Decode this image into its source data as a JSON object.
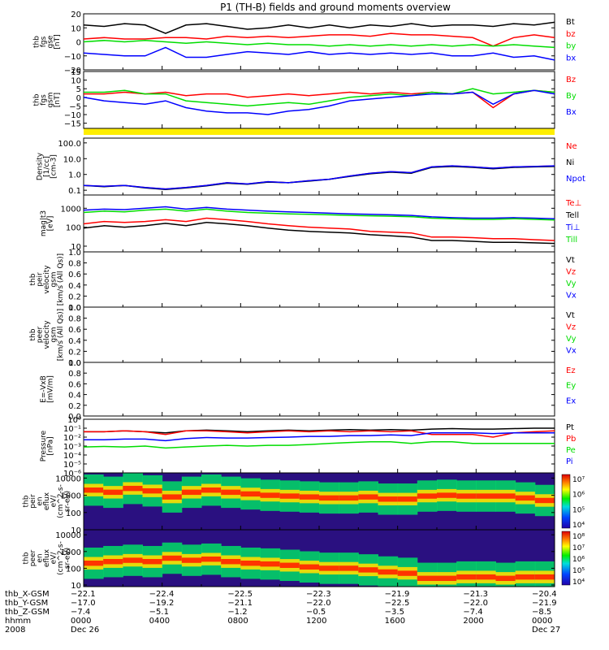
{
  "title": "P1 (TH-B) fields and ground moments overview",
  "colors": {
    "black": "#000000",
    "red": "#ff0000",
    "green": "#00dd00",
    "blue": "#0000ff",
    "yellow": "#ffee00"
  },
  "chart_data": [
    {
      "id": "fgs_gse",
      "type": "line",
      "ylabel": [
        "thb",
        "fgs",
        "gse",
        "[nT]"
      ],
      "ylim": [
        -20,
        20
      ],
      "yticks": [
        {
          "v": 20,
          "label": "20"
        },
        {
          "v": 10,
          "label": "10"
        },
        {
          "v": 0,
          "label": "0"
        },
        {
          "v": -10,
          "label": "−10"
        },
        {
          "v": -20,
          "label": "−20"
        }
      ],
      "series": [
        {
          "name": "Bt",
          "color": "black",
          "values": [
            12,
            11,
            13,
            12,
            6,
            12,
            13,
            11,
            9,
            10,
            12,
            10,
            12,
            10,
            12,
            11,
            13,
            11,
            12,
            12,
            11,
            13,
            12,
            14
          ]
        },
        {
          "name": "bz",
          "color": "red",
          "values": [
            2,
            3,
            2,
            2,
            3,
            3,
            2,
            4,
            3,
            4,
            3,
            4,
            5,
            5,
            4,
            6,
            5,
            5,
            4,
            3,
            -3,
            3,
            5,
            3
          ]
        },
        {
          "name": "by",
          "color": "green",
          "values": [
            0,
            1,
            0,
            1,
            0,
            -1,
            0,
            -1,
            -2,
            -1,
            -2,
            -2,
            -3,
            -2,
            -3,
            -2,
            -3,
            -2,
            -3,
            -2,
            -3,
            -2,
            -3,
            -4
          ]
        },
        {
          "name": "bx",
          "color": "blue",
          "values": [
            -8,
            -9,
            -10,
            -10,
            -4,
            -11,
            -11,
            -9,
            -7,
            -8,
            -9,
            -7,
            -9,
            -8,
            -9,
            -8,
            -9,
            -8,
            -10,
            -10,
            -8,
            -11,
            -10,
            -13
          ]
        }
      ]
    },
    {
      "id": "fgs_gsm",
      "type": "line",
      "ylabel": [
        "thb",
        "fgs",
        "gsm",
        "[nT]"
      ],
      "ylim": [
        -18,
        15
      ],
      "yticks": [
        {
          "v": 15,
          "label": "15"
        },
        {
          "v": 10,
          "label": "10"
        },
        {
          "v": 5,
          "label": "5"
        },
        {
          "v": 0,
          "label": "0"
        },
        {
          "v": -5,
          "label": "−5"
        },
        {
          "v": -10,
          "label": "−10"
        },
        {
          "v": -15,
          "label": "−15"
        }
      ],
      "series": [
        {
          "name": "Bz",
          "color": "red",
          "values": [
            2,
            2,
            3,
            2,
            3,
            1,
            2,
            2,
            0,
            1,
            2,
            1,
            2,
            3,
            2,
            3,
            2,
            3,
            2,
            3,
            -6,
            2,
            4,
            3
          ]
        },
        {
          "name": "By",
          "color": "green",
          "values": [
            3,
            3,
            4,
            2,
            2,
            -2,
            -3,
            -4,
            -5,
            -4,
            -3,
            -4,
            -2,
            0,
            1,
            2,
            1,
            3,
            2,
            5,
            2,
            3,
            4,
            3
          ]
        },
        {
          "name": "Bx",
          "color": "blue",
          "values": [
            0,
            -2,
            -3,
            -4,
            -2,
            -6,
            -8,
            -9,
            -9,
            -10,
            -8,
            -7,
            -5,
            -2,
            -1,
            0,
            1,
            2,
            2,
            3,
            -4,
            2,
            4,
            2
          ]
        }
      ]
    },
    {
      "id": "density",
      "type": "line",
      "ylabel": [
        "Density",
        "[1/cc]",
        "[cm-3]"
      ],
      "scale": "log",
      "ylim": [
        0.05,
        200
      ],
      "yticks": [
        {
          "v": 100,
          "label": "100.0"
        },
        {
          "v": 10,
          "label": "10.0"
        },
        {
          "v": 1,
          "label": "1.0"
        },
        {
          "v": 0.1,
          "label": "0.1"
        }
      ],
      "series": [
        {
          "name": "Ne",
          "color": "red",
          "values": [
            0.2,
            0.18,
            0.2,
            0.15,
            0.12,
            0.15,
            0.2,
            0.3,
            0.25,
            0.35,
            0.3,
            0.4,
            0.5,
            0.8,
            1.2,
            1.5,
            1.3,
            3,
            3.5,
            3,
            2.5,
            3,
            3.2,
            3.5
          ]
        },
        {
          "name": "Ni",
          "color": "black",
          "values": [
            0.2,
            0.17,
            0.2,
            0.14,
            0.11,
            0.14,
            0.19,
            0.28,
            0.24,
            0.33,
            0.3,
            0.38,
            0.5,
            0.75,
            1.1,
            1.4,
            1.2,
            2.8,
            3.2,
            2.8,
            2.3,
            2.8,
            3,
            3.2
          ]
        },
        {
          "name": "Npot",
          "color": "blue",
          "values": [
            0.2,
            0.18,
            0.2,
            0.15,
            0.12,
            0.15,
            0.2,
            0.3,
            0.25,
            0.35,
            0.3,
            0.4,
            0.5,
            0.8,
            1.2,
            1.5,
            1.3,
            3,
            3.5,
            3,
            2.5,
            3,
            3.2,
            3.5
          ]
        }
      ]
    },
    {
      "id": "temperature",
      "type": "line",
      "ylabel": [
        "mag|t3",
        "[eV]"
      ],
      "scale": "log",
      "ylim": [
        5,
        5000
      ],
      "yticks": [
        {
          "v": 1000,
          "label": "1000"
        },
        {
          "v": 100,
          "label": "100"
        },
        {
          "v": 10,
          "label": "10"
        }
      ],
      "series": [
        {
          "name": "Te⊥",
          "color": "red",
          "values": [
            150,
            200,
            180,
            200,
            250,
            200,
            300,
            250,
            200,
            150,
            120,
            100,
            90,
            80,
            60,
            55,
            50,
            30,
            30,
            28,
            25,
            25,
            22,
            20
          ]
        },
        {
          "name": "Tell",
          "color": "black",
          "values": [
            90,
            120,
            100,
            120,
            160,
            120,
            180,
            150,
            120,
            90,
            70,
            60,
            55,
            50,
            40,
            35,
            30,
            20,
            20,
            18,
            16,
            16,
            15,
            14
          ]
        },
        {
          "name": "Ti⊥",
          "color": "blue",
          "values": [
            800,
            900,
            850,
            1000,
            1200,
            900,
            1100,
            900,
            800,
            700,
            650,
            600,
            550,
            500,
            480,
            450,
            420,
            350,
            320,
            300,
            300,
            320,
            300,
            280
          ]
        },
        {
          "name": "Till",
          "color": "green",
          "values": [
            600,
            700,
            650,
            800,
            900,
            700,
            900,
            700,
            600,
            550,
            500,
            480,
            450,
            420,
            400,
            380,
            360,
            300,
            280,
            260,
            260,
            280,
            260,
            240
          ]
        }
      ]
    },
    {
      "id": "peir_velocity",
      "type": "line",
      "ylabel": [
        "thb",
        "peir",
        "velocity",
        "gsm",
        "[km/s (All Qs)]"
      ],
      "ylim": [
        0,
        1
      ],
      "yticks": [
        {
          "v": 1,
          "label": "1.0"
        },
        {
          "v": 0.8,
          "label": "0.8"
        },
        {
          "v": 0.6,
          "label": "0.6"
        },
        {
          "v": 0.4,
          "label": "0.4"
        },
        {
          "v": 0.2,
          "label": "0.2"
        },
        {
          "v": 0,
          "label": "0.0"
        }
      ],
      "series": [
        {
          "name": "Vt",
          "color": "black",
          "values": []
        },
        {
          "name": "Vz",
          "color": "red",
          "values": []
        },
        {
          "name": "Vy",
          "color": "green",
          "values": []
        },
        {
          "name": "Vx",
          "color": "blue",
          "values": []
        }
      ]
    },
    {
      "id": "peer_velocity",
      "type": "line",
      "ylabel": [
        "thb",
        "peer",
        "velocity",
        "gsm",
        "[km/s (All Qs)]"
      ],
      "ylim": [
        0,
        1
      ],
      "yticks": [
        {
          "v": 1,
          "label": "1.0"
        },
        {
          "v": 0.8,
          "label": "0.8"
        },
        {
          "v": 0.6,
          "label": "0.6"
        },
        {
          "v": 0.4,
          "label": "0.4"
        },
        {
          "v": 0.2,
          "label": "0.2"
        },
        {
          "v": 0,
          "label": "0.0"
        }
      ],
      "series": [
        {
          "name": "Vt",
          "color": "black",
          "values": []
        },
        {
          "name": "Vz",
          "color": "red",
          "values": []
        },
        {
          "name": "Vy",
          "color": "green",
          "values": []
        },
        {
          "name": "Vx",
          "color": "blue",
          "values": []
        }
      ]
    },
    {
      "id": "efield",
      "type": "line",
      "ylabel": [
        "E=-VxB",
        "[mV/m]"
      ],
      "ylim": [
        0,
        1
      ],
      "yticks": [
        {
          "v": 1,
          "label": "1.0"
        },
        {
          "v": 0.8,
          "label": "0.8"
        },
        {
          "v": 0.6,
          "label": "0.6"
        },
        {
          "v": 0.4,
          "label": "0.4"
        },
        {
          "v": 0.2,
          "label": "0.2"
        },
        {
          "v": 0,
          "label": "0.0"
        }
      ],
      "series": [
        {
          "name": "Ez",
          "color": "red",
          "values": []
        },
        {
          "name": "Ey",
          "color": "green",
          "values": []
        },
        {
          "name": "Ex",
          "color": "blue",
          "values": []
        }
      ]
    },
    {
      "id": "pressure",
      "type": "line",
      "ylabel": [
        "Pressure",
        "[nPa]"
      ],
      "scale": "log",
      "ylim": [
        1e-06,
        1
      ],
      "yticks": [
        {
          "v": 1,
          "label": "10⁰"
        },
        {
          "v": 0.1,
          "label": "10⁻¹"
        },
        {
          "v": 0.01,
          "label": "10⁻²"
        },
        {
          "v": 0.001,
          "label": "10⁻³"
        },
        {
          "v": 0.0001,
          "label": "10⁻⁴"
        },
        {
          "v": 1e-05,
          "label": "10⁻⁵"
        },
        {
          "v": 1e-06,
          "label": "10⁻⁶"
        }
      ],
      "series": [
        {
          "name": "Pt",
          "color": "black",
          "values": [
            0.04,
            0.04,
            0.05,
            0.04,
            0.03,
            0.05,
            0.06,
            0.05,
            0.04,
            0.05,
            0.06,
            0.05,
            0.06,
            0.07,
            0.06,
            0.07,
            0.06,
            0.08,
            0.09,
            0.08,
            0.08,
            0.09,
            0.1,
            0.1
          ]
        },
        {
          "name": "Pb",
          "color": "red",
          "values": [
            0.04,
            0.04,
            0.05,
            0.04,
            0.02,
            0.05,
            0.05,
            0.04,
            0.03,
            0.04,
            0.05,
            0.04,
            0.05,
            0.04,
            0.05,
            0.04,
            0.05,
            0.02,
            0.02,
            0.02,
            0.01,
            0.03,
            0.04,
            0.05
          ]
        },
        {
          "name": "Pe",
          "color": "green",
          "values": [
            0.0008,
            0.0009,
            0.0008,
            0.001,
            0.0006,
            0.0008,
            0.001,
            0.0012,
            0.001,
            0.0012,
            0.0012,
            0.0015,
            0.002,
            0.0025,
            0.003,
            0.003,
            0.002,
            0.003,
            0.003,
            0.002,
            0.002,
            0.002,
            0.002,
            0.002
          ]
        },
        {
          "name": "Pi",
          "color": "blue",
          "values": [
            0.005,
            0.005,
            0.006,
            0.006,
            0.004,
            0.007,
            0.009,
            0.008,
            0.008,
            0.009,
            0.01,
            0.012,
            0.012,
            0.015,
            0.015,
            0.018,
            0.015,
            0.03,
            0.03,
            0.03,
            0.025,
            0.03,
            0.03,
            0.03
          ]
        }
      ]
    },
    {
      "id": "peir_eflux",
      "type": "heatmap",
      "ylabel": [
        "thb",
        "peir",
        "en",
        "eflux",
        "eV/",
        "(cm^2-s-",
        "sr-eV)"
      ],
      "scale": "log",
      "ylim": [
        10,
        20000
      ],
      "yticks": [
        {
          "v": 10000,
          "label": "10000"
        },
        {
          "v": 1000,
          "label": "1000"
        },
        {
          "v": 100,
          "label": "100"
        },
        {
          "v": 10,
          "label": "10"
        }
      ],
      "colorbar": {
        "labels": [
          "10⁷",
          "10⁶",
          "10⁵",
          "10⁴"
        ]
      },
      "peak_energy": [
        2000,
        1500,
        2500,
        1800,
        800,
        1500,
        2000,
        1500,
        1200,
        1000,
        900,
        800,
        700,
        700,
        800,
        600,
        600,
        900,
        1000,
        900,
        900,
        900,
        700,
        500
      ]
    },
    {
      "id": "peer_eflux",
      "type": "heatmap",
      "ylabel": [
        "thb",
        "peer",
        "en",
        "eflux",
        "eV/",
        "(cm^2-s-",
        "sr-eV)"
      ],
      "scale": "log",
      "ylim": [
        8,
        20000
      ],
      "yticks": [
        {
          "v": 10000,
          "label": "10000"
        },
        {
          "v": 1000,
          "label": "1000"
        },
        {
          "v": 100,
          "label": "100"
        },
        {
          "v": 10,
          "label": "10"
        }
      ],
      "colorbar": {
        "labels": [
          "10⁸",
          "10⁷",
          "10⁶",
          "10⁵",
          "10⁴"
        ]
      },
      "peak_energy": [
        200,
        250,
        300,
        250,
        400,
        300,
        350,
        250,
        200,
        180,
        150,
        120,
        100,
        100,
        80,
        60,
        50,
        25,
        25,
        30,
        30,
        25,
        30,
        30
      ]
    }
  ],
  "xaxis": {
    "row_labels": [
      "thb_X-GSM",
      "thb_Y-GSM",
      "thb_Z-GSM",
      "hhmm",
      "2008"
    ],
    "ticks": [
      {
        "t": 0,
        "values": [
          "−22.1",
          "−17.0",
          "−7.4",
          "0000",
          "Dec 26"
        ]
      },
      {
        "t": 4,
        "values": [
          "−22.4",
          "−19.2",
          "−5.1",
          "0400",
          ""
        ]
      },
      {
        "t": 8,
        "values": [
          "−22.5",
          "−21.1",
          "−1.2",
          "0800",
          ""
        ]
      },
      {
        "t": 12,
        "values": [
          "−22.3",
          "−22.0",
          "−0.5",
          "1200",
          ""
        ]
      },
      {
        "t": 16,
        "values": [
          "−21.9",
          "−22.5",
          "−3.5",
          "1600",
          ""
        ]
      },
      {
        "t": 20,
        "values": [
          "−21.3",
          "−22.0",
          "−7.4",
          "2000",
          ""
        ]
      },
      {
        "t": 24,
        "values": [
          "−20.4",
          "−21.9",
          "−8.5",
          "0000",
          "Dec 27"
        ]
      }
    ]
  }
}
